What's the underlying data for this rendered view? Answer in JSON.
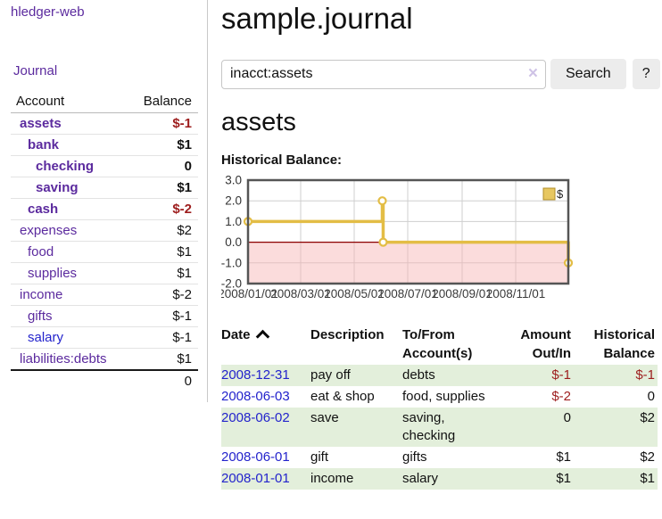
{
  "app": {
    "brand": "hledger-web"
  },
  "colors": {
    "link_purple": "#5b2a9e",
    "link_blue": "#2323cc",
    "negative_strong": "#9d1d1d",
    "negative_muted": "#bf7a7a",
    "row_stripe_green": "#e3efdb",
    "chart_line_gold": "#e3bd45",
    "chart_negative_pink": "#f7b2b2",
    "chart_zero_line": "#8b0000"
  },
  "sidebar": {
    "journal_link": "Journal",
    "headers": {
      "account": "Account",
      "balance": "Balance"
    },
    "accounts": [
      {
        "name": "assets",
        "balance": "$-1",
        "depth": 1,
        "bold": true,
        "negative": true,
        "blue": false
      },
      {
        "name": "bank",
        "balance": "$1",
        "depth": 2,
        "bold": true,
        "negative": false,
        "blue": false
      },
      {
        "name": "checking",
        "balance": "0",
        "depth": 3,
        "bold": true,
        "negative": false,
        "blue": false
      },
      {
        "name": "saving",
        "balance": "$1",
        "depth": 3,
        "bold": true,
        "negative": false,
        "blue": false
      },
      {
        "name": "cash",
        "balance": "$-2",
        "depth": 2,
        "bold": true,
        "negative": true,
        "blue": false
      },
      {
        "name": "expenses",
        "balance": "$2",
        "depth": 1,
        "bold": false,
        "negative": false,
        "blue": false
      },
      {
        "name": "food",
        "balance": "$1",
        "depth": 2,
        "bold": false,
        "negative": false,
        "blue": false
      },
      {
        "name": "supplies",
        "balance": "$1",
        "depth": 2,
        "bold": false,
        "negative": false,
        "blue": false
      },
      {
        "name": "income",
        "balance": "$-2",
        "depth": 1,
        "bold": false,
        "negative": true,
        "blue": false
      },
      {
        "name": "gifts",
        "balance": "$-1",
        "depth": 2,
        "bold": false,
        "negative": true,
        "blue": false
      },
      {
        "name": "salary",
        "balance": "$-1",
        "depth": 2,
        "bold": false,
        "negative": true,
        "blue": true
      },
      {
        "name": "liabilities:debts",
        "balance": "$1",
        "depth": 1,
        "bold": false,
        "negative": false,
        "blue": false
      }
    ],
    "total": "0"
  },
  "header": {
    "title": "sample.journal"
  },
  "search": {
    "value": "inacct:assets",
    "clear_icon": "×",
    "button": "Search",
    "help_button": "?"
  },
  "account_page": {
    "heading": "assets",
    "chart_label": "Historical Balance:"
  },
  "chart_data": {
    "type": "line",
    "step": true,
    "title": "Historical Balance",
    "series": [
      {
        "name": "$",
        "points": [
          {
            "x": "2008-01-01",
            "y": 1
          },
          {
            "x": "2008-06-02",
            "y": 2
          },
          {
            "x": "2008-06-03",
            "y": 0
          },
          {
            "x": "2008-12-31",
            "y": -1
          }
        ]
      }
    ],
    "x_range": [
      "2008-01-01",
      "2008-12-31"
    ],
    "x_tick_dates": [
      "2008-01-01",
      "2008-03-01",
      "2008-05-01",
      "2008-07-01",
      "2008-09-01",
      "2008-11-01"
    ],
    "x_tick_labels": [
      "2008/01/01",
      "2008/03/01",
      "2008/05/01",
      "2008/07/01",
      "2008/09/01",
      "2008/11/01"
    ],
    "y_ticks": [
      "3.0",
      "2.0",
      "1.0",
      "0.0",
      "-1.0",
      "-2.0"
    ],
    "ylim": [
      -2,
      3
    ],
    "grid": true,
    "legend": {
      "label": "$",
      "position": "top-right"
    },
    "colors": {
      "line": "#e3bd45",
      "marker_fill": "#ffffff",
      "negative_region": "#f7b2b2",
      "zero_line": "#8b0000",
      "grid": "#cfcfcf",
      "border": "#555555"
    }
  },
  "register": {
    "headers": {
      "date": "Date",
      "sort_icon": "chevron-up",
      "description": "Description",
      "accounts": "To/From Account(s)",
      "amount": "Amount Out/In",
      "balance": "Historical Balance"
    },
    "rows": [
      {
        "date": "2008-12-31",
        "description": "pay off",
        "accounts": "debts",
        "amount": "$-1",
        "amount_negative": true,
        "balance": "$-1",
        "balance_negative": true
      },
      {
        "date": "2008-06-03",
        "description": "eat & shop",
        "accounts": "food, supplies",
        "amount": "$-2",
        "amount_negative": true,
        "balance": "0",
        "balance_negative": false
      },
      {
        "date": "2008-06-02",
        "description": "save",
        "accounts": "saving, checking",
        "amount": "0",
        "amount_negative": false,
        "balance": "$2",
        "balance_negative": false
      },
      {
        "date": "2008-06-01",
        "description": "gift",
        "accounts": "gifts",
        "amount": "$1",
        "amount_negative": false,
        "balance": "$2",
        "balance_negative": false
      },
      {
        "date": "2008-01-01",
        "description": "income",
        "accounts": "salary",
        "amount": "$1",
        "amount_negative": false,
        "balance": "$1",
        "balance_negative": false
      }
    ]
  }
}
